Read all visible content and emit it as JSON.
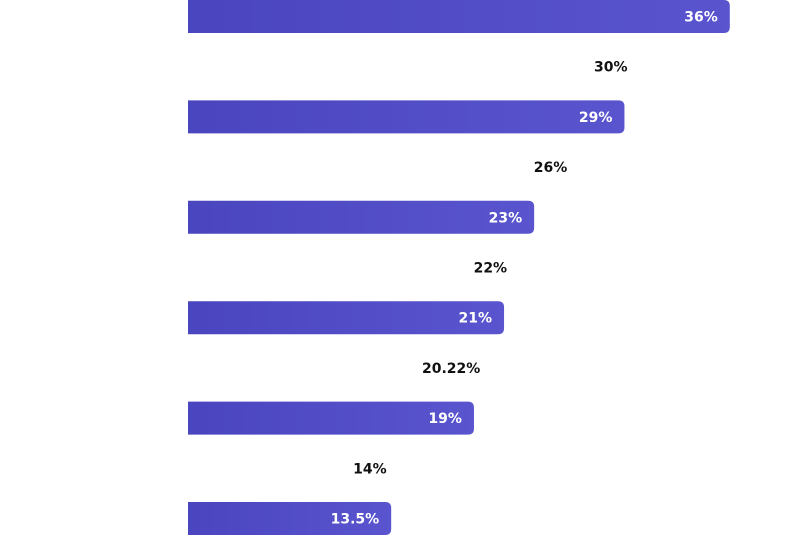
{
  "chart_data": {
    "type": "hbar",
    "values": [
      36,
      30,
      29,
      26,
      23,
      22,
      21,
      20.22,
      19,
      14,
      13.5
    ],
    "value_labels": [
      "36%",
      "30%",
      "29%",
      "26%",
      "23%",
      "22%",
      "21%",
      "20.22%",
      "19%",
      "14%",
      "13.5%"
    ],
    "colors": [
      "#4f4acb",
      "#ffffff",
      "#4f4acb",
      "#ffffff",
      "#4f4acb",
      "#ffffff",
      "#4f4acb",
      "#ffffff",
      "#4f4acb",
      "#ffffff",
      "#4f4acb"
    ],
    "label_colors": [
      "#ffffff",
      "#111111",
      "#ffffff",
      "#111111",
      "#ffffff",
      "#111111",
      "#ffffff",
      "#111111",
      "#ffffff",
      "#111111",
      "#ffffff"
    ],
    "xlim": [
      0,
      40
    ]
  }
}
